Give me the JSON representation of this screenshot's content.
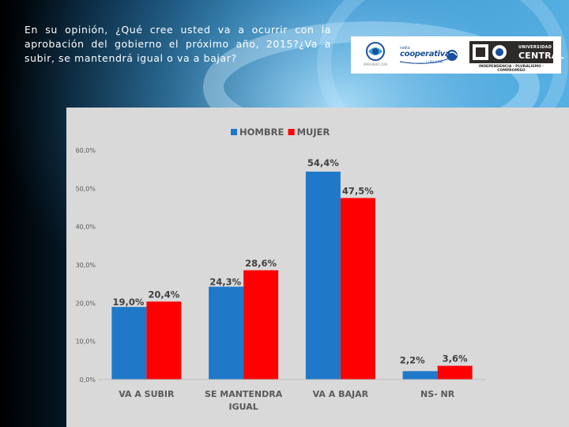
{
  "header": {
    "question": "En su opinión, ¿Qué cree usted va a ocurrir con la aprobación del gobierno el próximo año, 2015?¿Va a subir, se mantendrá igual o va a bajar?"
  },
  "logos": {
    "logo1_text": "IMAGINACCION",
    "logo2_top": "radio",
    "logo2_main": "cooperativa",
    "logo2_sub": ".cl  93.3 FM",
    "logo3_line1": "UNIVERSIDAD",
    "logo3_line2": "CENTRAL",
    "logo3_motto": "INDEPENDENCIA · PLURALISMO · COMPROMISO"
  },
  "colors": {
    "hombre": "#1f78c8",
    "mujer": "#ff0000"
  },
  "chart_data": {
    "type": "bar",
    "title": "",
    "xlabel": "",
    "ylabel": "",
    "ylim": [
      0,
      60
    ],
    "yticks": [
      "0,0%",
      "10,0%",
      "20,0%",
      "30,0%",
      "40,0%",
      "50,0%",
      "60,0%"
    ],
    "categories": [
      "VA A SUBIR",
      "SE MANTENDRA IGUAL",
      "VA A BAJAR",
      "NS- NR"
    ],
    "category_lines": [
      [
        "VA A SUBIR"
      ],
      [
        "SE MANTENDRA",
        "IGUAL"
      ],
      [
        "VA A BAJAR"
      ],
      [
        "NS- NR"
      ]
    ],
    "legend_position": "top-center",
    "grid": false,
    "series": [
      {
        "name": "HOMBRE",
        "values": [
          19.0,
          24.3,
          54.4,
          2.2
        ],
        "labels": [
          "19,0%",
          "24,3%",
          "54,4%",
          "2,2%"
        ]
      },
      {
        "name": "MUJER",
        "values": [
          20.4,
          28.6,
          47.5,
          3.6
        ],
        "labels": [
          "20,4%",
          "28,6%",
          "47,5%",
          "3,6%"
        ]
      }
    ]
  }
}
